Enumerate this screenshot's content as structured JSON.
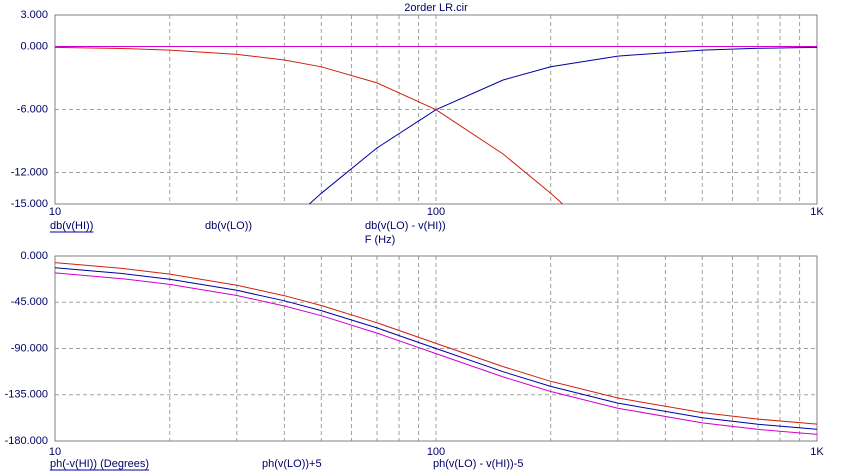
{
  "chart_data": [
    {
      "type": "line",
      "title": "2order LR.cir",
      "x_label": "F (Hz)",
      "log_x": true,
      "grid": true,
      "xlim": [
        10,
        1000
      ],
      "xticks": [
        10,
        100,
        {
          "value": 1000,
          "label": "1K"
        }
      ],
      "ylim": [
        -15,
        3
      ],
      "yticks": [
        {
          "value": 3,
          "label": "3.000"
        },
        {
          "value": 0,
          "label": "0.000"
        },
        {
          "value": -6,
          "label": "-6.000"
        },
        {
          "value": -12,
          "label": "-12.000"
        },
        {
          "value": -15,
          "label": "-15.000"
        }
      ],
      "series": [
        {
          "name": "db(v(HI))",
          "color": "#0000a0",
          "x": [
            45,
            50,
            70,
            100,
            150,
            200,
            300,
            500,
            700,
            1000
          ],
          "values": [
            -15.47,
            -13.979,
            -9.66,
            -6.021,
            -3.193,
            -1.938,
            -0.915,
            -0.341,
            -0.175,
            -0.086
          ]
        },
        {
          "name": "db(v(LO))",
          "color": "#d02010",
          "x": [
            10,
            15,
            20,
            30,
            40,
            50,
            70,
            100,
            150,
            200,
            220
          ],
          "values": [
            -0.086,
            -0.193,
            -0.341,
            -0.749,
            -1.289,
            -1.938,
            -3.464,
            -6.021,
            -10.238,
            -13.979,
            -15.33
          ]
        },
        {
          "name": "db(v(LO) - v(HI))",
          "color": "#d000d0",
          "x": [
            10,
            100,
            1000
          ],
          "values": [
            0,
            0,
            0
          ]
        }
      ]
    },
    {
      "type": "line",
      "log_x": true,
      "grid": true,
      "xlim": [
        10,
        1000
      ],
      "xticks": [
        10,
        100,
        {
          "value": 1000,
          "label": "1K"
        }
      ],
      "ylim": [
        -180,
        0
      ],
      "yticks": [
        {
          "value": 0,
          "label": "0.000"
        },
        {
          "value": -45,
          "label": "-45.000"
        },
        {
          "value": -90,
          "label": "-90.000"
        },
        {
          "value": -135,
          "label": "-135.000"
        },
        {
          "value": -180,
          "label": "-180.000"
        }
      ],
      "series": [
        {
          "name": "ph(-v(HI)) (Degrees)",
          "color": "#0000a0",
          "x": [
            10,
            15,
            20,
            30,
            40,
            50,
            70,
            100,
            150,
            200,
            300,
            500,
            700,
            1000
          ],
          "values": [
            -11.42,
            -17.06,
            -22.62,
            -33.4,
            -43.6,
            -53.13,
            -69.98,
            -90,
            -112.62,
            -126.87,
            -143.13,
            -157.38,
            -163.74,
            -168.58
          ]
        },
        {
          "name": "ph(v(LO))+5",
          "color": "#d02010",
          "x": [
            10,
            15,
            20,
            30,
            40,
            50,
            70,
            100,
            150,
            200,
            300,
            500,
            700,
            1000
          ],
          "values": [
            -6.42,
            -12.06,
            -17.62,
            -28.4,
            -38.6,
            -48.13,
            -64.98,
            -85,
            -107.62,
            -121.87,
            -138.13,
            -152.38,
            -158.74,
            -163.58
          ]
        },
        {
          "name": "ph(v(LO) - v(HI))-5",
          "color": "#d000d0",
          "x": [
            10,
            15,
            20,
            30,
            40,
            50,
            70,
            100,
            150,
            200,
            300,
            500,
            700,
            1000
          ],
          "values": [
            -16.42,
            -22.06,
            -27.62,
            -38.4,
            -48.6,
            -58.13,
            -74.98,
            -95,
            -117.62,
            -131.87,
            -148.13,
            -162.38,
            -168.74,
            -173.58
          ]
        }
      ]
    }
  ]
}
